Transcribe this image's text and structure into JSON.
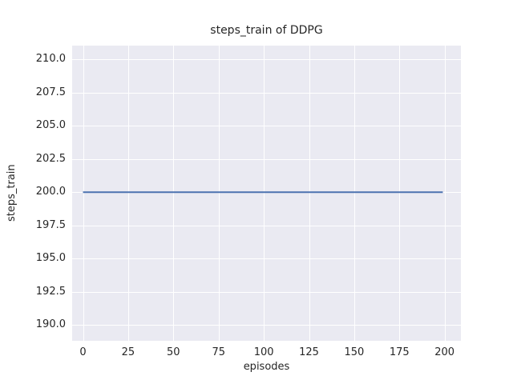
{
  "chart_data": {
    "type": "line",
    "title": "steps_train of DDPG",
    "xlabel": "episodes",
    "ylabel": "steps_train",
    "x_ticks": {
      "values": [
        0,
        25,
        50,
        75,
        100,
        125,
        150,
        175,
        200
      ],
      "labels": [
        "0",
        "25",
        "50",
        "75",
        "100",
        "125",
        "150",
        "175",
        "200"
      ]
    },
    "y_ticks": {
      "values": [
        190.0,
        192.5,
        195.0,
        197.5,
        200.0,
        202.5,
        205.0,
        207.5,
        210.0
      ],
      "labels": [
        "190.0",
        "192.5",
        "195.0",
        "197.5",
        "200.0",
        "202.5",
        "205.0",
        "207.5",
        "210.0"
      ]
    },
    "xlim": [
      -6,
      209
    ],
    "ylim": [
      188.8,
      211.05
    ],
    "grid": true,
    "legend": "none",
    "series": [
      {
        "name": "steps_train",
        "color": "#4C72B0",
        "x": [
          0,
          199
        ],
        "y": [
          200,
          200
        ],
        "description": "constant value 200 for every episode from 0 to 199"
      }
    ]
  },
  "colors": {
    "figure_background": "#ffffff",
    "plot_background": "#EAEAF2",
    "grid": "#ffffff",
    "text": "#262626",
    "line": "#4C72B0"
  }
}
